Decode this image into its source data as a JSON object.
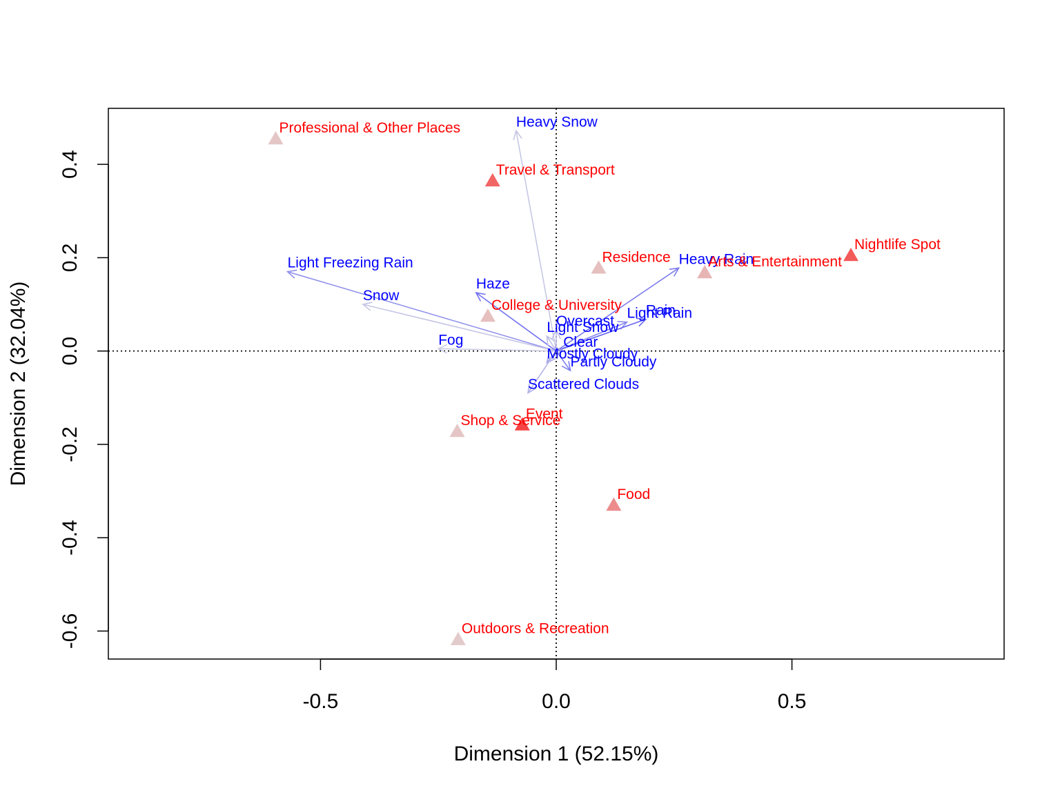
{
  "chart_data": {
    "type": "scatter",
    "plot_kind": "correspondence-analysis biplot",
    "xlabel": "Dimension 1 (52.15%)",
    "ylabel": "Dimension 2 (32.04%)",
    "xlim": [
      -0.95,
      0.95
    ],
    "ylim": [
      -0.66,
      0.52
    ],
    "xticks": [
      -0.5,
      0.0,
      0.5
    ],
    "xtick_labels": [
      "-0.5",
      "0.0",
      "0.5"
    ],
    "yticks": [
      -0.6,
      -0.4,
      -0.2,
      0.0,
      0.2,
      0.4
    ],
    "ytick_labels": [
      "-0.6",
      "-0.4",
      "-0.2",
      "0.0",
      "0.2",
      "0.4"
    ],
    "grid": false,
    "reference_lines": "dotted lines at x=0 and y=0",
    "row_points": {
      "marker": "triangle",
      "color": "#ff0000",
      "points": [
        {
          "name": "Professional & Other Places",
          "x": -0.595,
          "y": 0.455,
          "shade": 0.12
        },
        {
          "name": "Travel & Transport",
          "x": -0.135,
          "y": 0.365,
          "shade": 0.55
        },
        {
          "name": "Nightlife Spot",
          "x": 0.625,
          "y": 0.205,
          "shade": 0.6
        },
        {
          "name": "Residence",
          "x": 0.09,
          "y": 0.178,
          "shade": 0.15
        },
        {
          "name": "Arts & Entertainment",
          "x": 0.315,
          "y": 0.168,
          "shade": 0.2
        },
        {
          "name": "College & University",
          "x": -0.145,
          "y": 0.075,
          "shade": 0.15
        },
        {
          "name": "Shop & Service",
          "x": -0.21,
          "y": -0.172,
          "shade": 0.12
        },
        {
          "name": "Event",
          "x": -0.072,
          "y": -0.158,
          "shade": 0.7
        },
        {
          "name": "Food",
          "x": 0.122,
          "y": -0.33,
          "shade": 0.38
        },
        {
          "name": "Outdoors & Recreation",
          "x": -0.208,
          "y": -0.618,
          "shade": 0.1
        }
      ]
    },
    "column_arrows": {
      "color": "#0000ff",
      "points": [
        {
          "name": "Heavy Snow",
          "x": -0.085,
          "y": 0.472,
          "shade": 0.12
        },
        {
          "name": "Light Freezing Rain",
          "x": -0.57,
          "y": 0.17,
          "shade": 0.35
        },
        {
          "name": "Snow",
          "x": -0.41,
          "y": 0.1,
          "shade": 0.12
        },
        {
          "name": "Haze",
          "x": -0.17,
          "y": 0.125,
          "shade": 0.5
        },
        {
          "name": "Heavy Rain",
          "x": 0.26,
          "y": 0.178,
          "shade": 0.45
        },
        {
          "name": "Light Rain",
          "x": 0.15,
          "y": 0.062,
          "shade": 0.4
        },
        {
          "name": "Rain",
          "x": 0.19,
          "y": 0.068,
          "shade": 0.55
        },
        {
          "name": "Light Snow",
          "x": -0.02,
          "y": 0.032,
          "shade": 0.15
        },
        {
          "name": "Overcast",
          "x": 0.0,
          "y": 0.045,
          "shade": 0.15
        },
        {
          "name": "Fog",
          "x": -0.25,
          "y": 0.005,
          "shade": 0.1
        },
        {
          "name": "Clear",
          "x": 0.015,
          "y": 0.0,
          "shade": 0.3
        },
        {
          "name": "Mostly Cloudy",
          "x": -0.02,
          "y": -0.025,
          "shade": 0.25
        },
        {
          "name": "Partly Cloudy",
          "x": 0.03,
          "y": -0.042,
          "shade": 0.45
        },
        {
          "name": "Scattered Clouds",
          "x": -0.06,
          "y": -0.09,
          "shade": 0.2
        }
      ]
    }
  }
}
